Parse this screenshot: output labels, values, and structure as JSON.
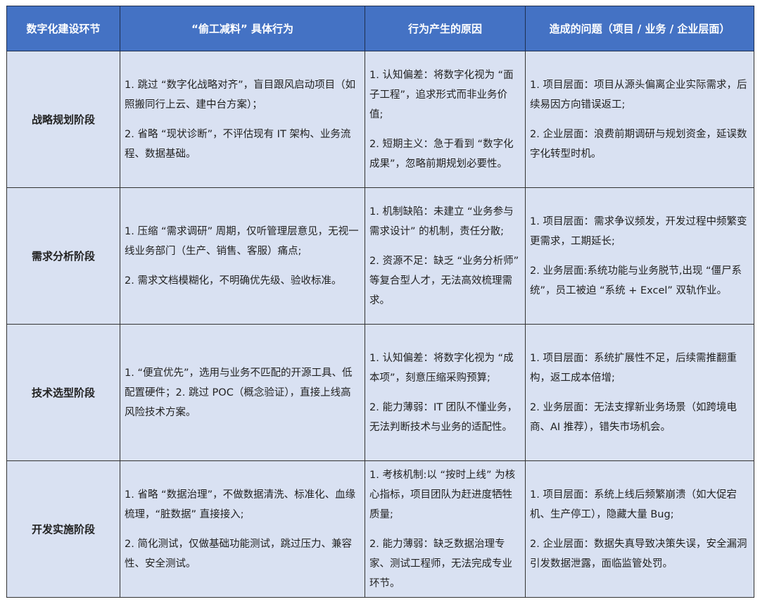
{
  "header": [
    "数字化建设环节",
    "“偷工减料” 具体行为",
    "行为产生的原因",
    "造成的问题（项目 / 业务 / 企业层面）"
  ],
  "rows": [
    {
      "stage": "战略规划阶段",
      "behavior": [
        "1. 跳过 “数字化战略对齐”，盲目跟风启动项目（如照搬同行上云、建中台方案）；",
        "2. 省略 “现状诊断”，不评估现有 IT 架构、业务流程、数据基础。"
      ],
      "cause": [
        "1. 认知偏差：将数字化视为 “面子工程”，追求形式而非业务价值;",
        "2. 短期主义：急于看到 “数字化成果”，忽略前期规划必要性。"
      ],
      "problem": [
        "1. 项目层面：项目从源头偏离企业实际需求，后续易因方向错误返工;",
        "2. 企业层面：浪费前期调研与规划资金，延误数字化转型时机。"
      ]
    },
    {
      "stage": "需求分析阶段",
      "behavior": [
        "1. 压缩 “需求调研” 周期，仅听管理层意见，无视一线业务部门（生产、销售、客服）痛点;",
        "2. 需求文档模糊化，不明确优先级、验收标准。"
      ],
      "cause": [
        "1. 机制缺陷：未建立 “业务参与需求设计” 的机制，责任分散;",
        "2. 资源不足：缺乏 “业务分析师” 等复合型人才，无法高效梳理需求。"
      ],
      "problem": [
        "1. 项目层面：需求争议频发，开发过程中频繁变更需求，工期延长;",
        "2. 业务层面:系统功能与业务脱节,出现 “僵尸系统”，员工被迫 “系统 + Excel” 双轨作业。"
      ]
    },
    {
      "stage": "技术选型阶段",
      "behavior": [
        "1. “便宜优先”，选用与业务不匹配的开源工具、低配置硬件；2. 跳过 POC（概念验证），直接上线高风险技术方案。"
      ],
      "cause": [
        "1. 认知偏差：将数字化视为 “成本项”，刻意压缩采购预算;",
        "2. 能力薄弱：IT 团队不懂业务，无法判断技术与业务的适配性。"
      ],
      "problem": [
        "1. 项目层面：系统扩展性不足，后续需推翻重构，返工成本倍增;",
        "2. 业务层面：无法支撑新业务场景（如跨境电商、AI 推荐），错失市场机会。"
      ]
    },
    {
      "stage": "开发实施阶段",
      "behavior": [
        "1. 省略 “数据治理”，不做数据清洗、标准化、血缘梳理，“脏数据” 直接接入;",
        "2. 简化测试，仅做基础功能测试，跳过压力、兼容性、安全测试。"
      ],
      "cause": [
        "1. 考核机制:以 “按时上线” 为核心指标，项目团队为赶进度牺牲质量;",
        "2. 能力薄弱：缺乏数据治理专家、测试工程师，无法完成专业环节。"
      ],
      "problem": [
        "1. 项目层面：系统上线后频繁崩溃（如大促宕机、生产停工），隐藏大量 Bug;",
        "2. 企业层面：数据失真导致决策失误，安全漏洞引发数据泄露，面临监管处罚。"
      ]
    }
  ]
}
